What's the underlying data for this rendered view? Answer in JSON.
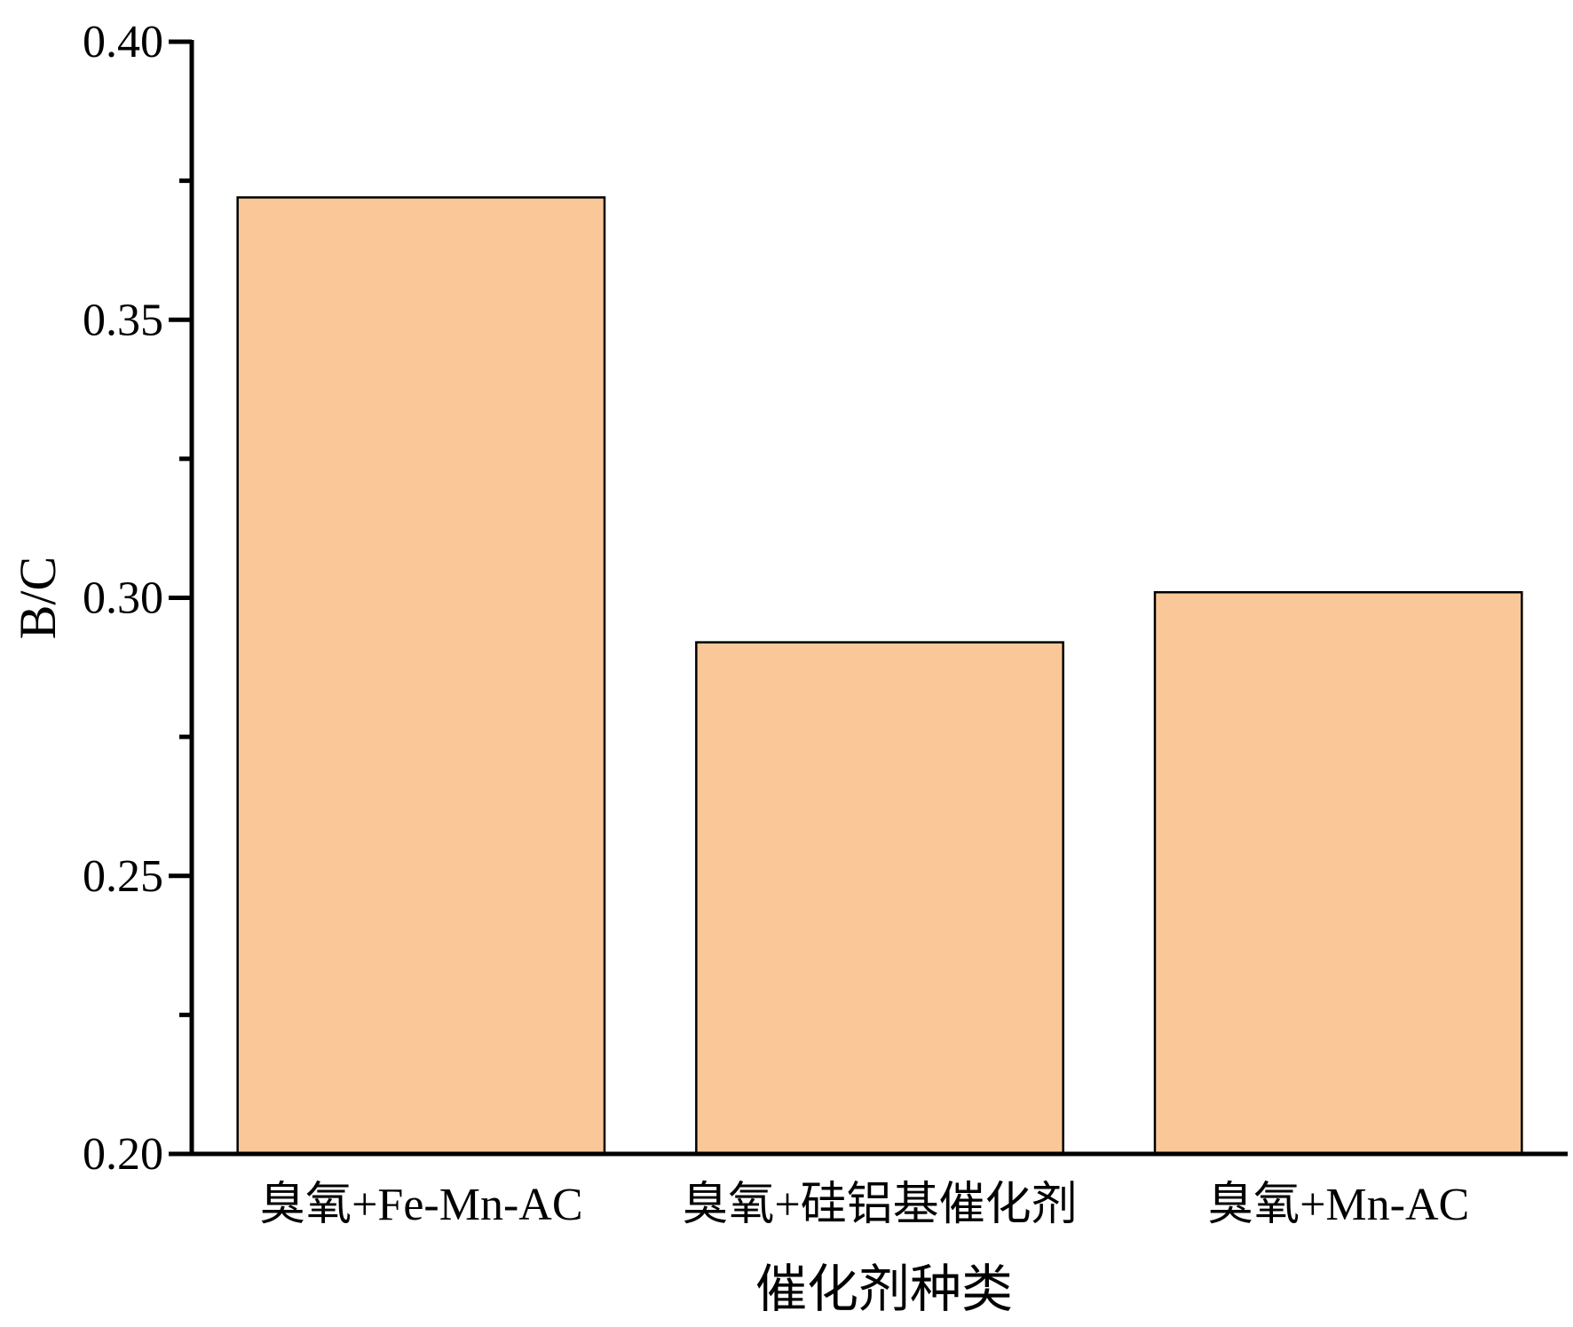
{
  "chart_data": {
    "type": "bar",
    "title": "",
    "xlabel": "催化剂种类",
    "ylabel": "B/C",
    "categories": [
      "臭氧+Fe-Mn-AC",
      "臭氧+硅铝基催化剂",
      "臭氧+Mn-AC"
    ],
    "values": [
      0.372,
      0.292,
      0.301
    ],
    "ylim": [
      0.2,
      0.4
    ],
    "yticks": [
      "0.20",
      "0.25",
      "0.30",
      "0.35",
      "0.40"
    ],
    "grid": false,
    "legend": "none",
    "bar_color": "#FAC898",
    "bar_edge_color": "#000000"
  }
}
